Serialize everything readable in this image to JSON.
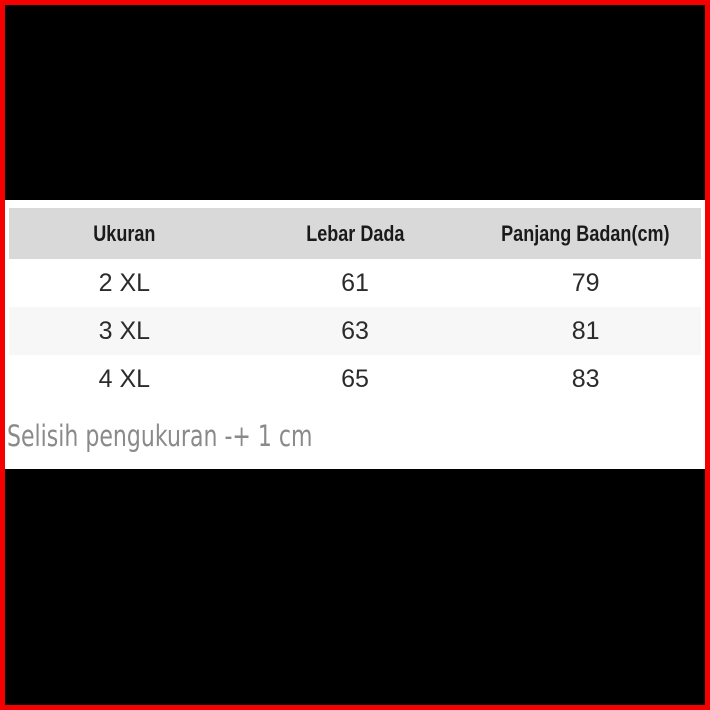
{
  "colors": {
    "frame_border": "#f40000",
    "background": "#000000",
    "panel_bg": "#ffffff",
    "header_bg": "#d9d9d9",
    "alt_row_bg": "#f7f7f7",
    "header_text": "#1a1a1a",
    "data_text": "#2b2b2b",
    "note_text": "#8a8a8a",
    "panel_bottom_line": "#3b3b3b"
  },
  "chart_data": {
    "type": "table",
    "columns": [
      "Ukuran",
      "Lebar Dada",
      "Panjang Badan(cm)"
    ],
    "rows": [
      [
        "2 XL",
        "61",
        "79"
      ],
      [
        "3 XL",
        "63",
        "81"
      ],
      [
        "4 XL",
        "65",
        "83"
      ]
    ],
    "note": "Selisih pengukuran -+ 1 cm",
    "layout": {
      "legend": "none",
      "grid": "off",
      "zebra_striped_row_index": 1
    }
  }
}
